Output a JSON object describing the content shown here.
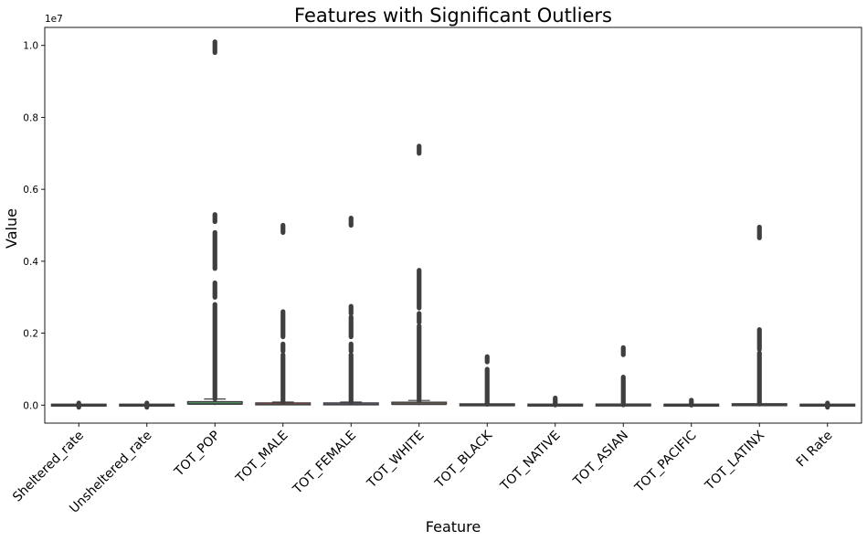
{
  "chart_data": {
    "type": "boxplot",
    "title": "Features with Significant Outliers",
    "xlabel": "Feature",
    "ylabel": "Value",
    "y_offset_text": "1e7",
    "y_tick_labels": [
      "0.0",
      "0.2",
      "0.4",
      "0.6",
      "0.8",
      "1.0"
    ],
    "y_tick_values": [
      0,
      2000000,
      4000000,
      6000000,
      8000000,
      10000000
    ],
    "ylim": [
      -500000,
      10500000
    ],
    "grid": false,
    "categories": [
      "Sheltered_rate",
      "Unsheltered_rate",
      "TOT_POP",
      "TOT_MALE",
      "TOT_FEMALE",
      "TOT_WHITE",
      "TOT_BLACK",
      "TOT_NATIVE",
      "TOT_ASIAN",
      "TOT_PACIFIC",
      "TOT_LATINX",
      "FI Rate"
    ],
    "series": [
      {
        "box": [
          0,
          0,
          0,
          0,
          0
        ],
        "outlier_ranges": [
          [
            -60000,
            60000
          ]
        ],
        "color": "#4c72b0"
      },
      {
        "box": [
          0,
          0,
          0,
          0,
          0
        ],
        "outlier_ranges": [
          [
            -60000,
            60000
          ]
        ],
        "color": "#dd8452"
      },
      {
        "box": [
          0,
          10000,
          25000,
          70000,
          170000
        ],
        "outlier_ranges": [
          [
            170000,
            2800000
          ],
          [
            3000000,
            3400000
          ],
          [
            3800000,
            4800000
          ],
          [
            5100000,
            5300000
          ],
          [
            9800000,
            10100000
          ]
        ],
        "color": "#55a868"
      },
      {
        "box": [
          0,
          5000,
          12000,
          35000,
          85000
        ],
        "outlier_ranges": [
          [
            85000,
            1400000
          ],
          [
            1500000,
            1700000
          ],
          [
            1900000,
            2600000
          ],
          [
            4800000,
            5000000
          ]
        ],
        "color": "#c44e52"
      },
      {
        "box": [
          0,
          5000,
          12000,
          35000,
          85000
        ],
        "outlier_ranges": [
          [
            85000,
            1400000
          ],
          [
            1500000,
            1700000
          ],
          [
            1900000,
            2450000
          ],
          [
            2550000,
            2750000
          ],
          [
            5000000,
            5200000
          ]
        ],
        "color": "#8172b3"
      },
      {
        "box": [
          0,
          8000,
          20000,
          55000,
          130000
        ],
        "outlier_ranges": [
          [
            130000,
            2200000
          ],
          [
            2300000,
            2550000
          ],
          [
            2700000,
            3750000
          ],
          [
            7000000,
            7200000
          ]
        ],
        "color": "#937860"
      },
      {
        "box": [
          0,
          500,
          2000,
          9000,
          22000
        ],
        "outlier_ranges": [
          [
            22000,
            1000000
          ],
          [
            1200000,
            1350000
          ]
        ],
        "color": "#da8bc3"
      },
      {
        "box": [
          0,
          200,
          500,
          1500,
          3500
        ],
        "outlier_ranges": [
          [
            3500,
            200000
          ]
        ],
        "color": "#8c8c8c"
      },
      {
        "box": [
          0,
          200,
          800,
          3500,
          8000
        ],
        "outlier_ranges": [
          [
            8000,
            780000
          ],
          [
            1400000,
            1600000
          ]
        ],
        "color": "#ccb974"
      },
      {
        "box": [
          0,
          0,
          100,
          300,
          700
        ],
        "outlier_ranges": [
          [
            700,
            140000
          ]
        ],
        "color": "#64b5cd"
      },
      {
        "box": [
          0,
          1000,
          3000,
          12000,
          30000
        ],
        "outlier_ranges": [
          [
            30000,
            1450000
          ],
          [
            1550000,
            2100000
          ],
          [
            4650000,
            4950000
          ]
        ],
        "color": "#4c72b0"
      },
      {
        "box": [
          0,
          0,
          0,
          0,
          0
        ],
        "outlier_ranges": [
          [
            -60000,
            60000
          ]
        ],
        "color": "#dd8452"
      }
    ]
  }
}
